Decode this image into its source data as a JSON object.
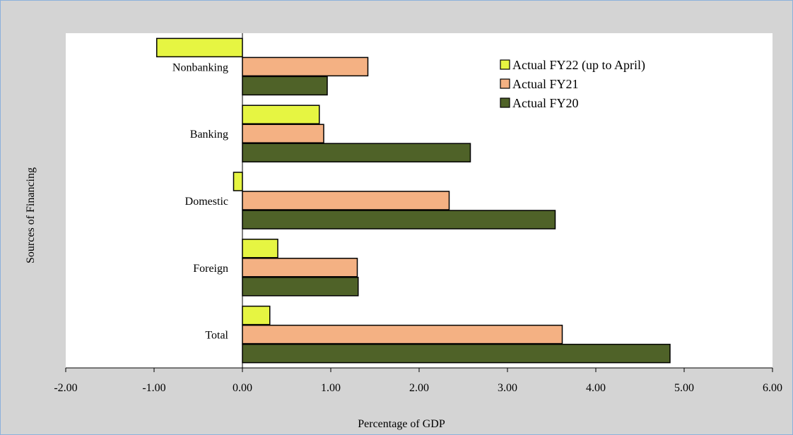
{
  "chart_data": {
    "type": "bar",
    "orientation": "horizontal",
    "title": "",
    "xlabel": "Percentage of  GDP",
    "ylabel": "Sources of Financing",
    "categories": [
      "Nonbanking",
      "Banking",
      "Domestic",
      "Foreign",
      "Total"
    ],
    "series": [
      {
        "name": "Actual FY22 (up to April)",
        "color": "#e6f542",
        "values": [
          -0.97,
          0.87,
          -0.1,
          0.4,
          0.31
        ]
      },
      {
        "name": "Actual FY21",
        "color": "#f4b183",
        "values": [
          1.42,
          0.92,
          2.34,
          1.3,
          3.62
        ]
      },
      {
        "name": "Actual FY20",
        "color": "#4f6228",
        "values": [
          0.96,
          2.58,
          3.54,
          1.31,
          4.84
        ]
      }
    ],
    "xlim": [
      -2,
      6
    ],
    "xticks": [
      "-2.00",
      "-1.00",
      "0.00",
      "1.00",
      "2.00",
      "3.00",
      "4.00",
      "5.00",
      "6.00"
    ],
    "grid": false,
    "legend": "top-right"
  }
}
